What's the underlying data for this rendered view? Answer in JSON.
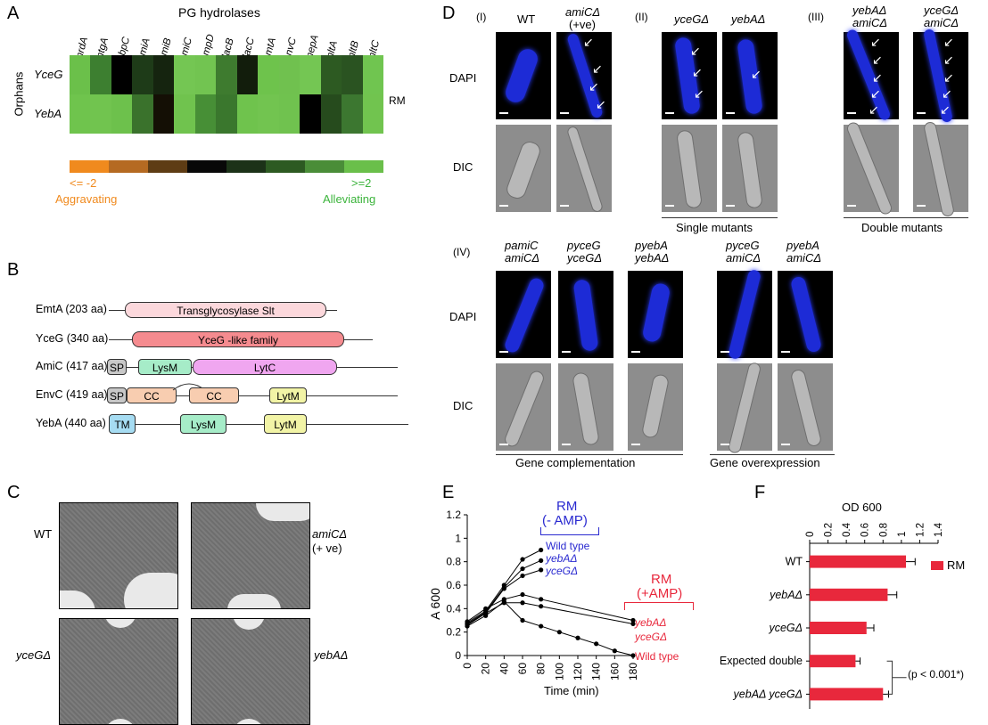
{
  "panels": {
    "a": "A",
    "b": "B",
    "c": "C",
    "d": "D",
    "e": "E",
    "f": "F"
  },
  "panel_a": {
    "title": "PG hydrolases",
    "y_label": "Orphans",
    "right_label": "RM",
    "columns": [
      "mrdA",
      "mtgA",
      "pbpC",
      "amiA",
      "amiB",
      "amiC",
      "ampD",
      "dacB",
      "dacC",
      "emtA",
      "envC",
      "mepA",
      "mltA",
      "mltB",
      "mltC"
    ],
    "rows": [
      {
        "name": "YceG",
        "colors": [
          "#6bc04a",
          "#3d7f30",
          "#000000",
          "#1e3b18",
          "#15240f",
          "#74c653",
          "#72c451",
          "#3e7b2f",
          "#121d0c",
          "#6ec34c",
          "#70c14f",
          "#74c653",
          "#2d5a22",
          "#2a5321",
          "#70c550"
        ]
      },
      {
        "name": "YebA",
        "colors": [
          "#6fc44d",
          "#71c44f",
          "#6dc14c",
          "#3a722c",
          "#140f05",
          "#70c34e",
          "#478f36",
          "#3a772d",
          "#6fc34d",
          "#72c450",
          "#70c24f",
          "#000000",
          "#264b1d",
          "#3c7730",
          "#71c44f"
        ]
      }
    ],
    "scale_colors": [
      "#f08a1e",
      "#b56a22",
      "#5e3c14",
      "#080808",
      "#1c3218",
      "#2d5a22",
      "#4a8d38",
      "#6abf4a"
    ],
    "scale_left": "<= -2",
    "scale_right": ">=2",
    "scale_left_label": "Aggravating",
    "scale_right_label": "Alleviating",
    "colors": {
      "aggravating": "#f08a1e",
      "alleviating": "#3cb43c"
    }
  },
  "panel_b": {
    "proteins": [
      {
        "name": "EmtA (203 aa)",
        "domains": [
          {
            "label": "Transglycosylase Slt",
            "color": "#fcd8dc"
          }
        ]
      },
      {
        "name": "YceG (340 aa)",
        "domains": [
          {
            "label": "YceG -like family",
            "color": "#f58b8f"
          }
        ]
      },
      {
        "name": "AmiC (417 aa)",
        "domains": [
          {
            "label": "SP",
            "color": "#c8c8c8"
          },
          {
            "label": "LysM",
            "color": "#a6ecc8"
          },
          {
            "label": "LytC",
            "color": "#f0a6f0"
          }
        ]
      },
      {
        "name": "EnvC (419 aa)",
        "domains": [
          {
            "label": "SP",
            "color": "#c8c8c8"
          },
          {
            "label": "CC",
            "color": "#f8cdb0"
          },
          {
            "label": "CC",
            "color": "#f8cdb0"
          },
          {
            "label": "LytM",
            "color": "#f2f4a6"
          }
        ]
      },
      {
        "name": "YebA (440 aa)",
        "domains": [
          {
            "label": "TM",
            "color": "#a6dcf2"
          },
          {
            "label": "LysM",
            "color": "#a6ecc8"
          },
          {
            "label": "LytM",
            "color": "#f2f4a6"
          }
        ]
      }
    ]
  },
  "panel_c": {
    "wt": "WT",
    "amic": "amiCΔ",
    "amic_sub": "(+ ve)",
    "yceg": "yceGΔ",
    "yeba": "yebAΔ"
  },
  "panel_d": {
    "group1": "(I)",
    "group2": "(II)",
    "group3": "(III)",
    "group4": "(IV)",
    "dapi": "DAPI",
    "dic": "DIC",
    "wt": "WT",
    "amic": "amiCΔ",
    "amic_sub": "(+ve)",
    "yceg": "yceGΔ",
    "yeba": "yebAΔ",
    "yeba_amic_1": "yebAΔ",
    "yeba_amic_2": "amiCΔ",
    "yceg_amic_1": "yceGΔ",
    "yceg_amic_2": "amiCΔ",
    "pamic_1": "pamiC",
    "pamic_2": "amiCΔ",
    "pyceg_1": "pyceG",
    "pyceg_2": "yceGΔ",
    "pyeba_1": "pyebA",
    "pyeba_2": "yebAΔ",
    "pyceg_amic_1": "pyceG",
    "pyceg_amic_2": "amiCΔ",
    "pyeba_amic_1": "pyebA",
    "pyeba_amic_2": "amiCΔ",
    "single": "Single mutants",
    "double": "Double mutants",
    "complement": "Gene complementation",
    "overexpr": "Gene overexpression"
  },
  "panel_e": {
    "ylabel": "A 600",
    "xlabel": "Time (min)",
    "rm_minus": "RM",
    "rm_minus_sub": "(- AMP)",
    "rm_plus": "RM",
    "rm_plus_sub": "(+AMP)",
    "minus_labels": [
      "Wild type",
      "yebAΔ",
      "yceGΔ"
    ],
    "plus_labels": [
      "yebAΔ",
      "yceGΔ",
      "Wild type"
    ],
    "colors": {
      "minus": "#2a2ad0",
      "plus": "#e8283c"
    }
  },
  "panel_f": {
    "title": "OD 600",
    "legend": "RM",
    "pvalue": "(p < 0.001*)",
    "bar_color": "#e8283c"
  },
  "chart_data": [
    {
      "type": "line",
      "x": [
        0,
        20,
        40,
        60,
        80,
        100,
        120,
        140,
        160,
        180
      ],
      "xlabel": "Time (min)",
      "ylabel": "A 600",
      "xlim": [
        0,
        180
      ],
      "ylim": [
        0,
        1.2
      ],
      "series": [
        {
          "name": "Wild type",
          "x": [
            0,
            20,
            40,
            60,
            80
          ],
          "values": [
            0.28,
            0.38,
            0.6,
            0.82,
            0.9
          ]
        },
        {
          "name": "yebAΔ",
          "x": [
            0,
            20,
            40,
            60,
            80
          ],
          "values": [
            0.27,
            0.37,
            0.58,
            0.74,
            0.81
          ]
        },
        {
          "name": "yceGΔ",
          "x": [
            0,
            20,
            40,
            60,
            80
          ],
          "values": [
            0.26,
            0.36,
            0.57,
            0.68,
            0.73
          ]
        },
        {
          "name": "yebAΔ",
          "x": [
            0,
            20,
            40,
            60,
            80,
            180
          ],
          "values": [
            0.29,
            0.4,
            0.48,
            0.52,
            0.48,
            0.3
          ]
        },
        {
          "name": "yceGΔ",
          "x": [
            0,
            20,
            40,
            60,
            80,
            180
          ],
          "values": [
            0.27,
            0.36,
            0.45,
            0.45,
            0.42,
            0.27
          ]
        },
        {
          "name": "Wild type",
          "x": [
            0,
            20,
            40,
            60,
            80,
            100,
            120,
            140,
            160,
            180
          ],
          "values": [
            0.25,
            0.34,
            0.46,
            0.3,
            0.25,
            0.2,
            0.15,
            0.1,
            0.04,
            0.0
          ]
        }
      ]
    },
    {
      "type": "bar",
      "title": "OD 600",
      "categories": [
        "WT",
        "yebAΔ",
        "yceGΔ",
        "Expected double",
        "yebAΔ yceGΔ"
      ],
      "values": [
        1.05,
        0.85,
        0.62,
        0.5,
        0.8
      ],
      "errors": [
        0.1,
        0.1,
        0.08,
        0.05,
        0.06
      ],
      "xlim": [
        0,
        1.4
      ],
      "ticks": [
        0,
        0.2,
        0.4,
        0.6,
        0.8,
        1.0,
        1.2,
        1.4
      ],
      "legend": "RM"
    }
  ]
}
